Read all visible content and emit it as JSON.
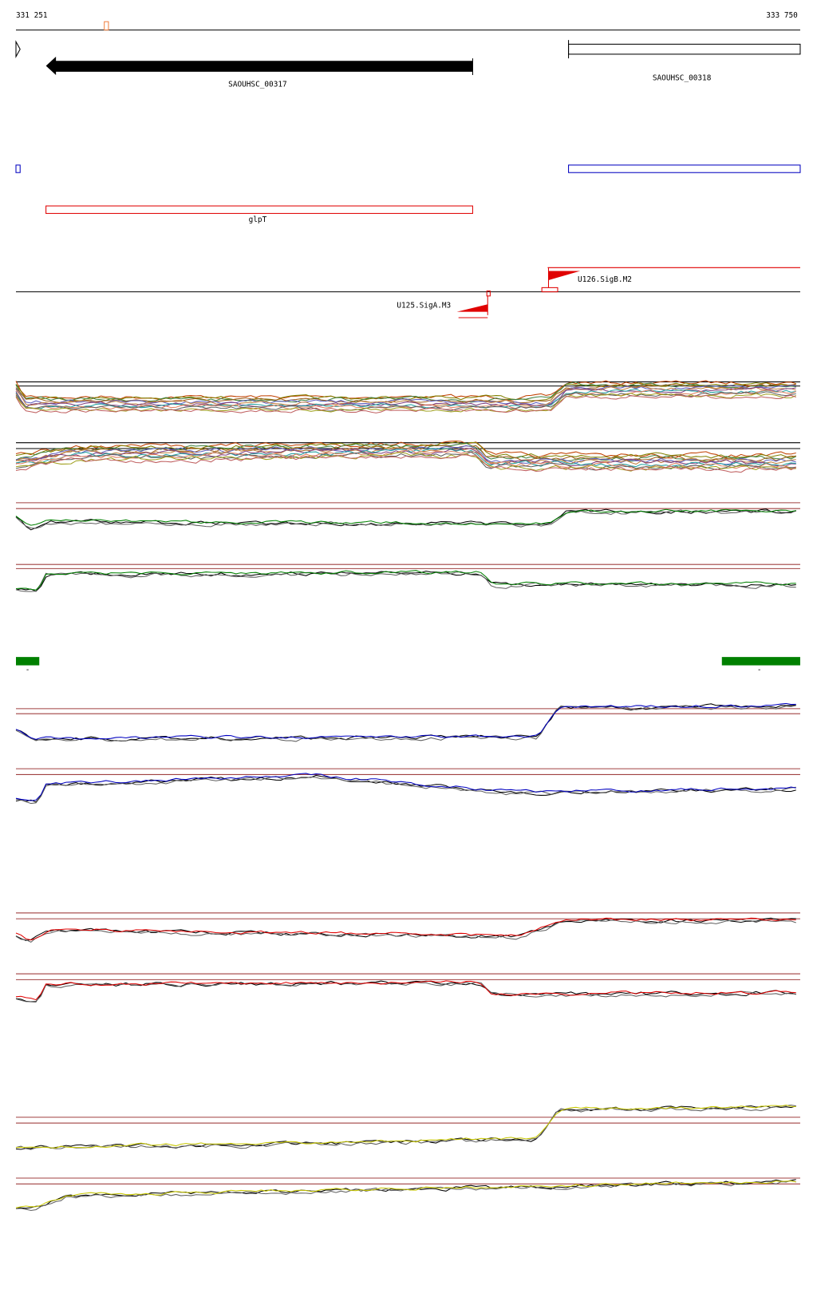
{
  "ruler": {
    "start": "331 251",
    "end": "333 750"
  },
  "genes": [
    {
      "label": "SAOUHSC_00317"
    },
    {
      "label": "SAOUHSC_00318"
    }
  ],
  "operon": {
    "label": "glpT"
  },
  "promoters": [
    {
      "label": "U126.SigB.M2"
    },
    {
      "label": "U125.SigA.M3"
    }
  ],
  "segments": [
    {
      "label": "-"
    },
    {
      "label": "-"
    }
  ]
}
